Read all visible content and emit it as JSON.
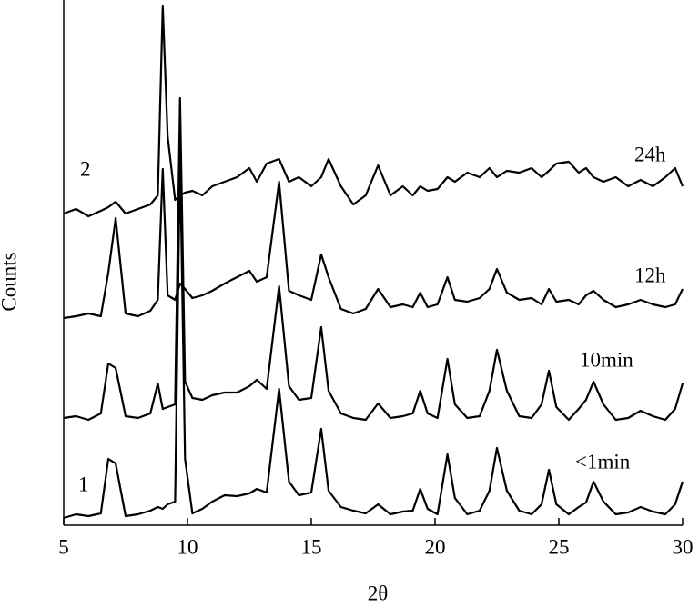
{
  "chart_data": {
    "type": "line",
    "xlabel": "2θ",
    "ylabel": "Counts",
    "xlim": [
      5,
      30
    ],
    "xticks": [
      5,
      10,
      15,
      20,
      25,
      30
    ],
    "ylim": [
      0,
      578
    ],
    "annotations": [
      "2",
      "1"
    ],
    "x": [
      5,
      5.5,
      6,
      6.5,
      6.8,
      7.1,
      7.5,
      8,
      8.5,
      8.8,
      9.0,
      9.2,
      9.5,
      9.7,
      9.9,
      10.2,
      10.6,
      11,
      11.5,
      12,
      12.5,
      12.8,
      13.2,
      13.7,
      14.1,
      14.5,
      15,
      15.4,
      15.7,
      16.2,
      16.7,
      17.2,
      17.7,
      18.2,
      18.7,
      19.1,
      19.4,
      19.7,
      20.1,
      20.5,
      20.8,
      21.3,
      21.8,
      22.2,
      22.5,
      22.9,
      23.4,
      23.9,
      24.3,
      24.6,
      24.9,
      25.4,
      25.8,
      26.1,
      26.4,
      26.8,
      27.3,
      27.8,
      28.3,
      28.8,
      29.3,
      29.7,
      30
    ],
    "series": [
      {
        "name": "<1min",
        "color": "#000000",
        "values": [
          8,
          12,
          10,
          13,
          73,
          68,
          10,
          12,
          16,
          20,
          18,
          23,
          26,
          408,
          73,
          13,
          18,
          26,
          33,
          32,
          35,
          40,
          36,
          150,
          48,
          33,
          36,
          106,
          38,
          20,
          16,
          13,
          23,
          12,
          15,
          16,
          40,
          18,
          12,
          78,
          30,
          12,
          16,
          38,
          85,
          38,
          16,
          12,
          23,
          61,
          23,
          12,
          20,
          25,
          48,
          26,
          12,
          14,
          20,
          15,
          12,
          23,
          48
        ]
      },
      {
        "name": "10min",
        "color": "#000000",
        "values": [
          118,
          120,
          116,
          123,
          178,
          173,
          120,
          118,
          123,
          156,
          128,
          130,
          133,
          470,
          158,
          140,
          138,
          143,
          146,
          146,
          153,
          160,
          150,
          263,
          153,
          138,
          140,
          218,
          148,
          123,
          118,
          116,
          134,
          118,
          120,
          123,
          148,
          123,
          118,
          183,
          133,
          118,
          120,
          148,
          193,
          148,
          120,
          118,
          133,
          170,
          130,
          116,
          128,
          138,
          158,
          133,
          116,
          118,
          126,
          120,
          116,
          128,
          156
        ]
      },
      {
        "name": "12h",
        "color": "#000000",
        "values": [
          228,
          230,
          233,
          230,
          278,
          338,
          233,
          230,
          236,
          248,
          392,
          253,
          248,
          266,
          260,
          250,
          253,
          258,
          266,
          273,
          280,
          268,
          273,
          378,
          258,
          253,
          248,
          298,
          273,
          238,
          233,
          238,
          260,
          240,
          243,
          240,
          256,
          240,
          243,
          273,
          248,
          246,
          250,
          260,
          282,
          256,
          248,
          250,
          243,
          260,
          246,
          248,
          243,
          253,
          258,
          248,
          240,
          243,
          248,
          243,
          240,
          243,
          260
        ]
      },
      {
        "name": "24h",
        "color": "#000000",
        "values": [
          343,
          348,
          340,
          346,
          350,
          356,
          343,
          348,
          353,
          363,
          571,
          428,
          358,
          363,
          366,
          368,
          363,
          373,
          378,
          383,
          393,
          378,
          398,
          403,
          378,
          383,
          373,
          383,
          403,
          373,
          353,
          363,
          396,
          363,
          373,
          363,
          373,
          368,
          370,
          383,
          378,
          388,
          383,
          393,
          383,
          390,
          388,
          393,
          383,
          390,
          398,
          400,
          388,
          393,
          383,
          378,
          383,
          373,
          380,
          373,
          383,
          393,
          373
        ]
      }
    ]
  }
}
